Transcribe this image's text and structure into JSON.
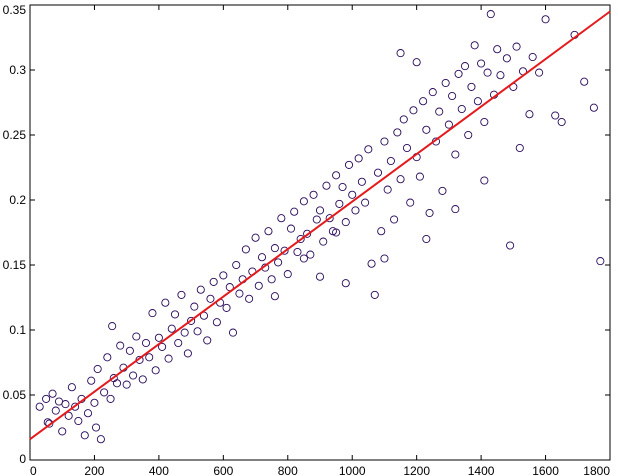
{
  "chart_data": {
    "type": "scatter",
    "title": "",
    "xlabel": "",
    "ylabel": "",
    "xlim": [
      0,
      1800
    ],
    "ylim": [
      0,
      0.35
    ],
    "x_ticks": [
      "0",
      "200",
      "400",
      "600",
      "800",
      "1000",
      "1200",
      "1400",
      "1600",
      "1800"
    ],
    "y_ticks": [
      "0",
      "0.05",
      "0.1",
      "0.15",
      "0.2",
      "0.25",
      "0.3",
      "0.35"
    ],
    "x_tick_values": [
      0,
      200,
      400,
      600,
      800,
      1000,
      1200,
      1400,
      1600,
      1800
    ],
    "y_tick_values": [
      0,
      0.05,
      0.1,
      0.15,
      0.2,
      0.25,
      0.3,
      0.35
    ],
    "grid": false,
    "legend": "none",
    "series": [
      {
        "kind": "scatter",
        "marker": "circle-open",
        "color": "#2a0a5a",
        "points": [
          [
            30,
            0.041
          ],
          [
            50,
            0.047
          ],
          [
            55,
            0.029
          ],
          [
            60,
            0.028
          ],
          [
            70,
            0.051
          ],
          [
            80,
            0.038
          ],
          [
            90,
            0.045
          ],
          [
            100,
            0.022
          ],
          [
            110,
            0.043
          ],
          [
            120,
            0.034
          ],
          [
            130,
            0.056
          ],
          [
            140,
            0.041
          ],
          [
            150,
            0.03
          ],
          [
            160,
            0.047
          ],
          [
            170,
            0.019
          ],
          [
            180,
            0.036
          ],
          [
            190,
            0.061
          ],
          [
            200,
            0.044
          ],
          [
            205,
            0.025
          ],
          [
            210,
            0.07
          ],
          [
            220,
            0.016
          ],
          [
            230,
            0.052
          ],
          [
            240,
            0.079
          ],
          [
            250,
            0.047
          ],
          [
            255,
            0.103
          ],
          [
            260,
            0.063
          ],
          [
            270,
            0.059
          ],
          [
            280,
            0.088
          ],
          [
            290,
            0.071
          ],
          [
            300,
            0.058
          ],
          [
            310,
            0.084
          ],
          [
            320,
            0.065
          ],
          [
            330,
            0.095
          ],
          [
            340,
            0.077
          ],
          [
            350,
            0.062
          ],
          [
            360,
            0.09
          ],
          [
            370,
            0.079
          ],
          [
            380,
            0.113
          ],
          [
            390,
            0.069
          ],
          [
            400,
            0.094
          ],
          [
            410,
            0.087
          ],
          [
            420,
            0.121
          ],
          [
            430,
            0.078
          ],
          [
            440,
            0.101
          ],
          [
            450,
            0.112
          ],
          [
            460,
            0.09
          ],
          [
            470,
            0.127
          ],
          [
            480,
            0.098
          ],
          [
            490,
            0.082
          ],
          [
            500,
            0.107
          ],
          [
            510,
            0.118
          ],
          [
            520,
            0.099
          ],
          [
            530,
            0.131
          ],
          [
            540,
            0.111
          ],
          [
            550,
            0.092
          ],
          [
            560,
            0.124
          ],
          [
            570,
            0.137
          ],
          [
            580,
            0.106
          ],
          [
            590,
            0.121
          ],
          [
            600,
            0.142
          ],
          [
            610,
            0.117
          ],
          [
            620,
            0.133
          ],
          [
            630,
            0.098
          ],
          [
            640,
            0.15
          ],
          [
            650,
            0.128
          ],
          [
            660,
            0.139
          ],
          [
            670,
            0.162
          ],
          [
            680,
            0.124
          ],
          [
            690,
            0.145
          ],
          [
            700,
            0.171
          ],
          [
            710,
            0.134
          ],
          [
            720,
            0.156
          ],
          [
            730,
            0.148
          ],
          [
            740,
            0.176
          ],
          [
            750,
            0.139
          ],
          [
            760,
            0.163
          ],
          [
            770,
            0.152
          ],
          [
            780,
            0.186
          ],
          [
            790,
            0.161
          ],
          [
            800,
            0.143
          ],
          [
            810,
            0.178
          ],
          [
            820,
            0.191
          ],
          [
            830,
            0.16
          ],
          [
            840,
            0.17
          ],
          [
            850,
            0.199
          ],
          [
            860,
            0.174
          ],
          [
            870,
            0.158
          ],
          [
            880,
            0.204
          ],
          [
            890,
            0.185
          ],
          [
            900,
            0.192
          ],
          [
            910,
            0.168
          ],
          [
            920,
            0.211
          ],
          [
            930,
            0.186
          ],
          [
            940,
            0.176
          ],
          [
            950,
            0.219
          ],
          [
            960,
            0.197
          ],
          [
            970,
            0.21
          ],
          [
            980,
            0.183
          ],
          [
            990,
            0.227
          ],
          [
            1000,
            0.204
          ],
          [
            1010,
            0.192
          ],
          [
            1020,
            0.232
          ],
          [
            1030,
            0.214
          ],
          [
            1040,
            0.198
          ],
          [
            1050,
            0.239
          ],
          [
            1060,
            0.151
          ],
          [
            1070,
            0.127
          ],
          [
            1080,
            0.221
          ],
          [
            1090,
            0.176
          ],
          [
            1100,
            0.245
          ],
          [
            1110,
            0.208
          ],
          [
            1120,
            0.23
          ],
          [
            1130,
            0.185
          ],
          [
            1140,
            0.252
          ],
          [
            1150,
            0.216
          ],
          [
            1160,
            0.262
          ],
          [
            1170,
            0.24
          ],
          [
            1180,
            0.198
          ],
          [
            1190,
            0.269
          ],
          [
            1200,
            0.233
          ],
          [
            1210,
            0.218
          ],
          [
            1220,
            0.276
          ],
          [
            1230,
            0.254
          ],
          [
            1240,
            0.19
          ],
          [
            1250,
            0.283
          ],
          [
            1260,
            0.245
          ],
          [
            1270,
            0.268
          ],
          [
            1280,
            0.207
          ],
          [
            1290,
            0.29
          ],
          [
            1300,
            0.258
          ],
          [
            1310,
            0.28
          ],
          [
            1320,
            0.235
          ],
          [
            1330,
            0.297
          ],
          [
            1340,
            0.27
          ],
          [
            1350,
            0.303
          ],
          [
            1360,
            0.25
          ],
          [
            1370,
            0.287
          ],
          [
            1380,
            0.319
          ],
          [
            1390,
            0.276
          ],
          [
            1400,
            0.305
          ],
          [
            1410,
            0.26
          ],
          [
            1420,
            0.298
          ],
          [
            1430,
            0.343
          ],
          [
            1440,
            0.281
          ],
          [
            1450,
            0.316
          ],
          [
            1460,
            0.296
          ],
          [
            1480,
            0.309
          ],
          [
            1490,
            0.165
          ],
          [
            1500,
            0.287
          ],
          [
            1510,
            0.318
          ],
          [
            1530,
            0.299
          ],
          [
            1550,
            0.266
          ],
          [
            1560,
            0.31
          ],
          [
            1580,
            0.298
          ],
          [
            1600,
            0.339
          ],
          [
            1630,
            0.265
          ],
          [
            1650,
            0.26
          ],
          [
            1690,
            0.327
          ],
          [
            1720,
            0.291
          ],
          [
            1750,
            0.271
          ],
          [
            1770,
            0.153
          ],
          [
            1150,
            0.313
          ],
          [
            1200,
            0.306
          ],
          [
            900,
            0.141
          ],
          [
            980,
            0.136
          ],
          [
            1100,
            0.155
          ],
          [
            1230,
            0.17
          ],
          [
            1320,
            0.193
          ],
          [
            1410,
            0.215
          ],
          [
            1520,
            0.24
          ],
          [
            760,
            0.126
          ],
          [
            850,
            0.155
          ],
          [
            950,
            0.175
          ]
        ]
      },
      {
        "kind": "line",
        "color": "#e41a1c",
        "x": [
          0,
          1800
        ],
        "values": [
          0.016,
          0.345
        ]
      }
    ]
  }
}
